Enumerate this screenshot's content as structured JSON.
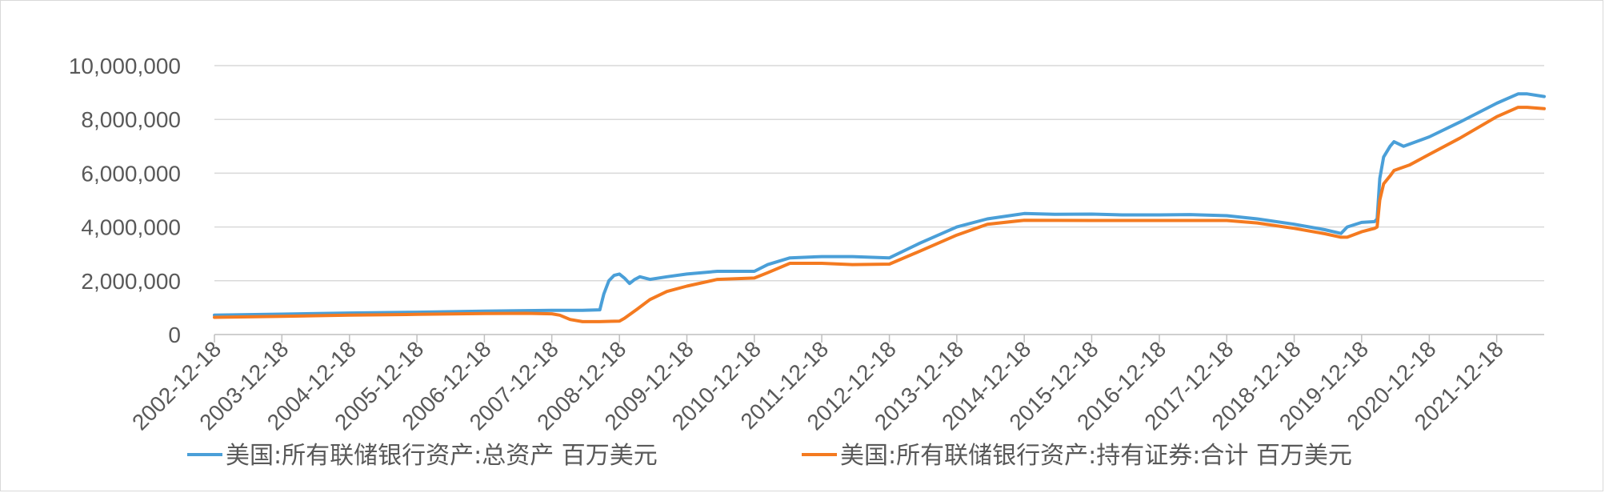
{
  "chart_data": {
    "type": "line",
    "title": "",
    "xlabel": "",
    "ylabel": "",
    "ylim": [
      0,
      10000000
    ],
    "yticks": [
      0,
      2000000,
      4000000,
      6000000,
      8000000,
      10000000
    ],
    "ytick_labels": [
      "0",
      "2,000,000",
      "4,000,000",
      "6,000,000",
      "8,000,000",
      "10,000,000"
    ],
    "xlim": [
      "2002-12-18",
      "2022-09-01"
    ],
    "xtick_labels": [
      "2002-12-18",
      "2003-12-18",
      "2004-12-18",
      "2005-12-18",
      "2006-12-18",
      "2007-12-18",
      "2008-12-18",
      "2009-12-18",
      "2010-12-18",
      "2011-12-18",
      "2012-12-18",
      "2013-12-18",
      "2014-12-18",
      "2015-12-18",
      "2016-12-18",
      "2017-12-18",
      "2018-12-18",
      "2019-12-18",
      "2020-12-18",
      "2021-12-18"
    ],
    "grid": "horizontal",
    "legend_position": "bottom",
    "series": [
      {
        "name": "美国:所有联储银行资产:总资产 百万美元",
        "color": "#4a9fd8",
        "points": [
          [
            "2002-12-18",
            720000
          ],
          [
            "2003-12-18",
            760000
          ],
          [
            "2004-12-18",
            800000
          ],
          [
            "2005-12-18",
            830000
          ],
          [
            "2006-12-18",
            870000
          ],
          [
            "2007-08-01",
            890000
          ],
          [
            "2007-12-18",
            900000
          ],
          [
            "2008-06-01",
            900000
          ],
          [
            "2008-09-03",
            920000
          ],
          [
            "2008-09-24",
            1500000
          ],
          [
            "2008-10-22",
            2000000
          ],
          [
            "2008-11-19",
            2200000
          ],
          [
            "2008-12-18",
            2250000
          ],
          [
            "2009-01-14",
            2100000
          ],
          [
            "2009-02-11",
            1900000
          ],
          [
            "2009-03-11",
            2050000
          ],
          [
            "2009-04-08",
            2150000
          ],
          [
            "2009-06-01",
            2050000
          ],
          [
            "2009-09-01",
            2150000
          ],
          [
            "2009-12-18",
            2250000
          ],
          [
            "2010-06-01",
            2350000
          ],
          [
            "2010-12-18",
            2350000
          ],
          [
            "2011-03-01",
            2600000
          ],
          [
            "2011-06-29",
            2850000
          ],
          [
            "2011-12-18",
            2900000
          ],
          [
            "2012-06-01",
            2900000
          ],
          [
            "2012-12-18",
            2850000
          ],
          [
            "2013-06-01",
            3400000
          ],
          [
            "2013-12-18",
            4000000
          ],
          [
            "2014-06-01",
            4300000
          ],
          [
            "2014-10-29",
            4450000
          ],
          [
            "2014-12-18",
            4500000
          ],
          [
            "2015-06-01",
            4470000
          ],
          [
            "2015-12-18",
            4480000
          ],
          [
            "2016-06-01",
            4450000
          ],
          [
            "2016-12-18",
            4450000
          ],
          [
            "2017-06-01",
            4460000
          ],
          [
            "2017-12-18",
            4420000
          ],
          [
            "2018-06-01",
            4300000
          ],
          [
            "2018-12-18",
            4100000
          ],
          [
            "2019-06-01",
            3900000
          ],
          [
            "2019-08-28",
            3760000
          ],
          [
            "2019-10-01",
            4000000
          ],
          [
            "2019-12-18",
            4170000
          ],
          [
            "2020-02-26",
            4200000
          ],
          [
            "2020-03-11",
            4300000
          ],
          [
            "2020-03-25",
            5800000
          ],
          [
            "2020-04-15",
            6600000
          ],
          [
            "2020-05-20",
            7000000
          ],
          [
            "2020-06-10",
            7170000
          ],
          [
            "2020-08-01",
            7000000
          ],
          [
            "2020-12-18",
            7350000
          ],
          [
            "2021-06-01",
            7900000
          ],
          [
            "2021-12-18",
            8600000
          ],
          [
            "2022-04-13",
            8950000
          ],
          [
            "2022-06-01",
            8950000
          ],
          [
            "2022-09-01",
            8850000
          ]
        ]
      },
      {
        "name": "美国:所有联储银行资产:持有证券:合计 百万美元",
        "color": "#f47a20",
        "points": [
          [
            "2002-12-18",
            640000
          ],
          [
            "2003-12-18",
            680000
          ],
          [
            "2004-12-18",
            720000
          ],
          [
            "2005-12-18",
            750000
          ],
          [
            "2006-12-18",
            780000
          ],
          [
            "2007-08-01",
            790000
          ],
          [
            "2007-12-18",
            770000
          ],
          [
            "2008-01-30",
            720000
          ],
          [
            "2008-03-26",
            560000
          ],
          [
            "2008-06-01",
            480000
          ],
          [
            "2008-09-01",
            480000
          ],
          [
            "2008-12-18",
            500000
          ],
          [
            "2009-01-14",
            600000
          ],
          [
            "2009-03-25",
            950000
          ],
          [
            "2009-06-01",
            1300000
          ],
          [
            "2009-09-01",
            1600000
          ],
          [
            "2009-12-18",
            1800000
          ],
          [
            "2010-06-01",
            2050000
          ],
          [
            "2010-12-18",
            2100000
          ],
          [
            "2011-03-01",
            2300000
          ],
          [
            "2011-06-29",
            2650000
          ],
          [
            "2011-12-18",
            2650000
          ],
          [
            "2012-06-01",
            2600000
          ],
          [
            "2012-12-18",
            2620000
          ],
          [
            "2013-06-01",
            3100000
          ],
          [
            "2013-12-18",
            3700000
          ],
          [
            "2014-06-01",
            4100000
          ],
          [
            "2014-12-18",
            4250000
          ],
          [
            "2015-12-18",
            4240000
          ],
          [
            "2016-12-18",
            4240000
          ],
          [
            "2017-12-18",
            4240000
          ],
          [
            "2018-06-01",
            4150000
          ],
          [
            "2018-12-18",
            3950000
          ],
          [
            "2019-06-01",
            3750000
          ],
          [
            "2019-08-28",
            3620000
          ],
          [
            "2019-10-01",
            3620000
          ],
          [
            "2019-12-18",
            3820000
          ],
          [
            "2020-02-26",
            3950000
          ],
          [
            "2020-03-11",
            4000000
          ],
          [
            "2020-03-25",
            5000000
          ],
          [
            "2020-04-15",
            5600000
          ],
          [
            "2020-05-20",
            5900000
          ],
          [
            "2020-06-10",
            6100000
          ],
          [
            "2020-09-01",
            6300000
          ],
          [
            "2020-12-18",
            6700000
          ],
          [
            "2021-06-01",
            7300000
          ],
          [
            "2021-12-18",
            8100000
          ],
          [
            "2022-04-13",
            8450000
          ],
          [
            "2022-06-01",
            8450000
          ],
          [
            "2022-09-01",
            8400000
          ]
        ]
      }
    ]
  }
}
